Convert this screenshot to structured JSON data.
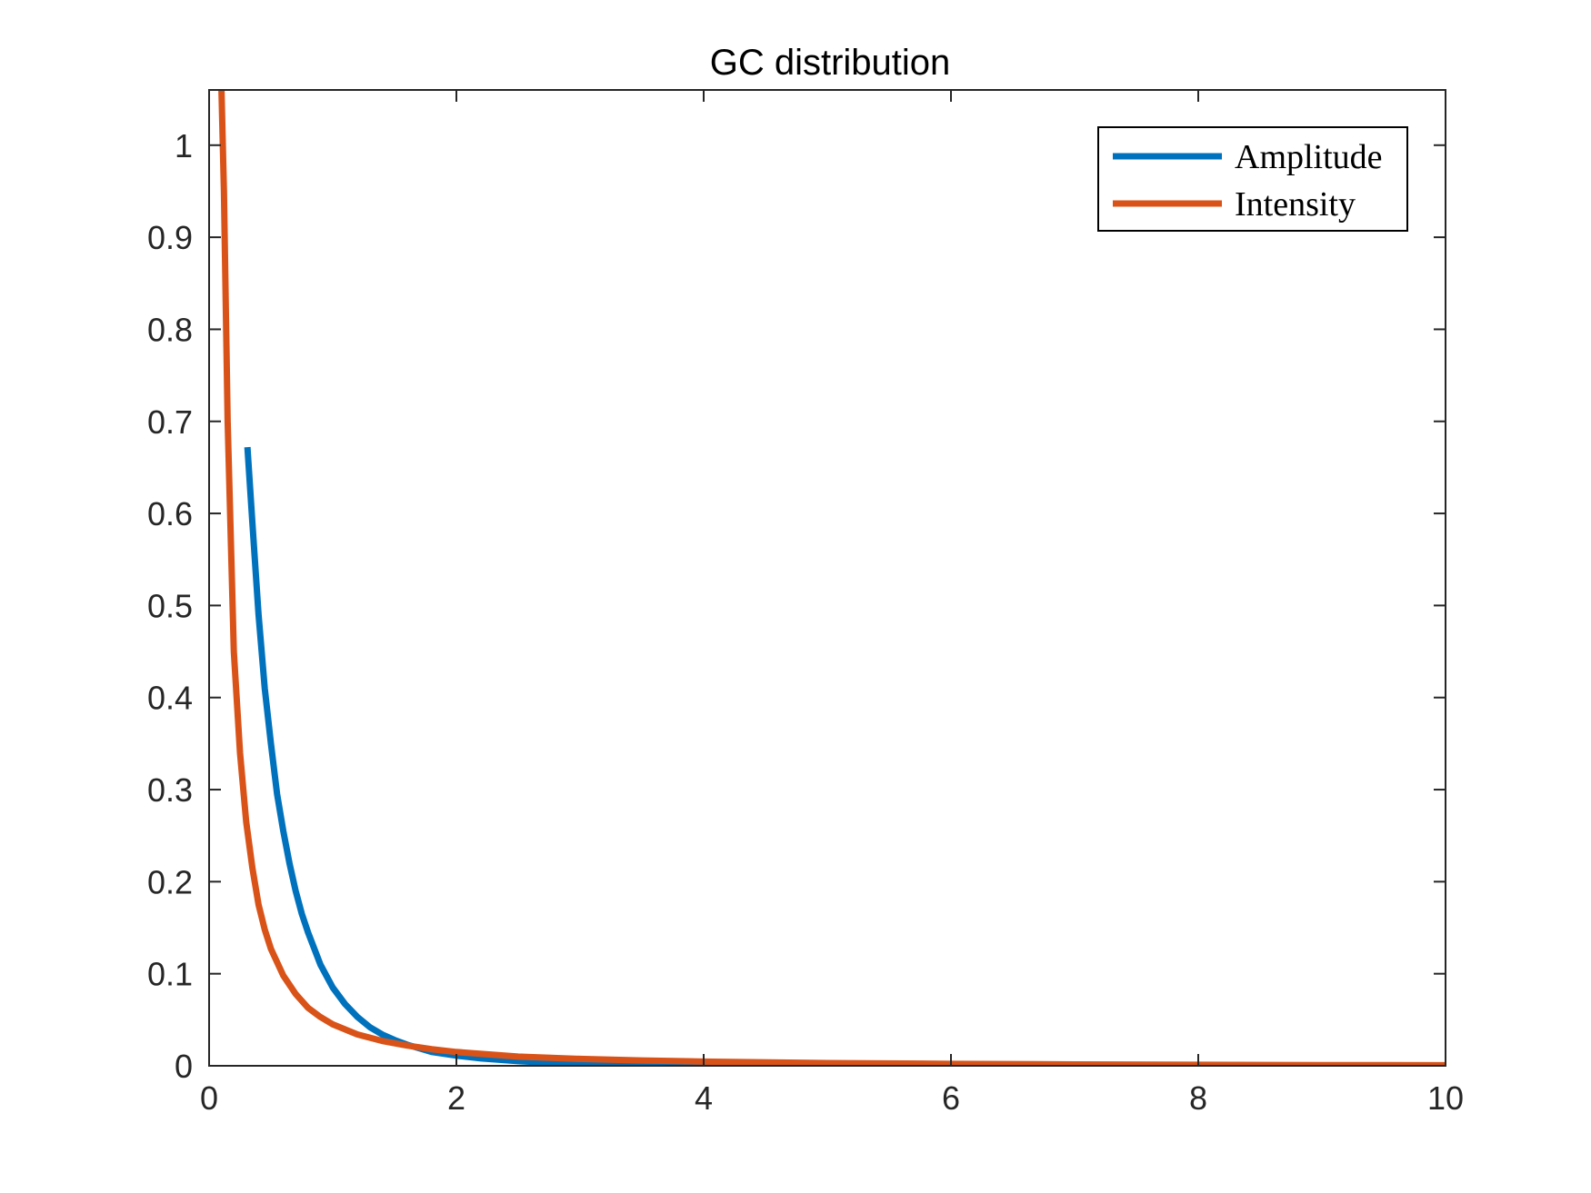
{
  "chart_data": {
    "type": "line",
    "title": "GC distribution",
    "xlabel": "",
    "ylabel": "",
    "xlim": [
      0,
      10
    ],
    "ylim": [
      0,
      1.06
    ],
    "x_ticks": [
      0,
      2,
      4,
      6,
      8,
      10
    ],
    "x_tick_labels": [
      "0",
      "2",
      "4",
      "6",
      "8",
      "10"
    ],
    "y_ticks": [
      0,
      0.1,
      0.2,
      0.3,
      0.4,
      0.5,
      0.6,
      0.7,
      0.8,
      0.9,
      1
    ],
    "y_tick_labels": [
      "0",
      "0.1",
      "0.2",
      "0.3",
      "0.4",
      "0.5",
      "0.6",
      "0.7",
      "0.8",
      "0.9",
      "1"
    ],
    "grid": false,
    "legend_position": "top-right",
    "series": [
      {
        "name": "Amplitude",
        "color": "#0072BD",
        "x": [
          0.31,
          0.35,
          0.4,
          0.45,
          0.5,
          0.55,
          0.6,
          0.65,
          0.7,
          0.75,
          0.8,
          0.9,
          1.0,
          1.1,
          1.2,
          1.3,
          1.4,
          1.5,
          1.6,
          1.8,
          2.0,
          2.2,
          2.5,
          2.8,
          3.0,
          3.5,
          4.0,
          4.5,
          5.0,
          6.0,
          7.0,
          8.0,
          9.0,
          10.0
        ],
        "y": [
          0.672,
          0.59,
          0.49,
          0.41,
          0.35,
          0.295,
          0.255,
          0.22,
          0.19,
          0.165,
          0.145,
          0.11,
          0.085,
          0.067,
          0.053,
          0.042,
          0.034,
          0.028,
          0.023,
          0.015,
          0.011,
          0.008,
          0.005,
          0.003,
          0.002,
          0.0013,
          0.0008,
          0.0005,
          0.0003,
          0.0001,
          5e-05,
          2e-05,
          1e-05,
          0.0
        ]
      },
      {
        "name": "Intensity",
        "color": "#D95319",
        "x": [
          0.1,
          0.12,
          0.15,
          0.18,
          0.2,
          0.25,
          0.3,
          0.35,
          0.4,
          0.45,
          0.5,
          0.6,
          0.7,
          0.8,
          0.9,
          1.0,
          1.2,
          1.4,
          1.6,
          1.8,
          2.0,
          2.5,
          3.0,
          3.5,
          4.0,
          5.0,
          6.0,
          7.0,
          8.0,
          9.0,
          10.0
        ],
        "y": [
          1.06,
          0.95,
          0.7,
          0.55,
          0.45,
          0.34,
          0.265,
          0.215,
          0.175,
          0.148,
          0.127,
          0.098,
          0.078,
          0.063,
          0.053,
          0.045,
          0.034,
          0.027,
          0.022,
          0.018,
          0.015,
          0.01,
          0.0075,
          0.0058,
          0.0046,
          0.003,
          0.0021,
          0.0015,
          0.0011,
          0.0008,
          0.0006
        ]
      }
    ]
  }
}
